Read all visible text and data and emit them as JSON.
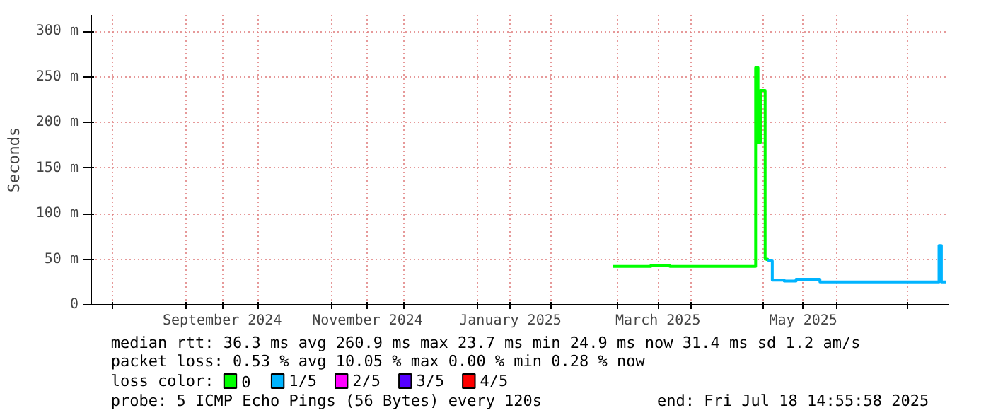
{
  "chart_data": {
    "type": "step",
    "ylabel": "Seconds",
    "legend_title": "loss color:",
    "legend": "bottom",
    "grid": true,
    "marker": "none",
    "line_style": "solid",
    "xlim": [
      "2024-07-23",
      "2025-07-18"
    ],
    "xticks": [
      {
        "value": "2024-08-01",
        "label": null
      },
      {
        "value": "2024-09-01",
        "label": null
      },
      {
        "value": "2024-09-16",
        "label": "September 2024"
      },
      {
        "value": "2024-10-01",
        "label": null
      },
      {
        "value": "2024-11-01",
        "label": null
      },
      {
        "value": "2024-11-16",
        "label": "November 2024"
      },
      {
        "value": "2024-12-01",
        "label": null
      },
      {
        "value": "2025-01-01",
        "label": null
      },
      {
        "value": "2025-01-15",
        "label": "January 2025"
      },
      {
        "value": "2025-02-01",
        "label": null
      },
      {
        "value": "2025-03-01",
        "label": null
      },
      {
        "value": "2025-03-18",
        "label": "March 2025"
      },
      {
        "value": "2025-04-01",
        "label": null
      },
      {
        "value": "2025-05-01",
        "label": null
      },
      {
        "value": "2025-05-18",
        "label": "May 2025"
      },
      {
        "value": "2025-06-01",
        "label": null
      },
      {
        "value": "2025-07-01",
        "label": null
      }
    ],
    "ylim": [
      0,
      318
    ],
    "yticks": [
      0,
      {
        "value": 50,
        "label": "50 m"
      },
      {
        "value": 100,
        "label": "100 m"
      },
      {
        "value": 150,
        "label": "150 m"
      },
      {
        "value": 200,
        "label": "200 m"
      },
      {
        "value": 250,
        "label": "250 m"
      },
      {
        "value": 300,
        "label": "300 m"
      }
    ],
    "series": [
      {
        "name": "0",
        "color": "#00ff00",
        "x": [
          "2025-02-27",
          "2025-03-07",
          "2025-03-15",
          "2025-03-23",
          "2025-03-31",
          "2025-04-08",
          "2025-04-16",
          "2025-04-24",
          "2025-04-27",
          "2025-04-28",
          "2025-04-29",
          "2025-04-30",
          "2025-05-02",
          "2025-05-03"
        ],
        "values": [
          42,
          42,
          43,
          42,
          42,
          42,
          42,
          42,
          42,
          260,
          178,
          235,
          50,
          48
        ]
      },
      {
        "name": "1/5",
        "color": "#00b4ff",
        "x": [
          "2025-05-03",
          "2025-05-05",
          "2025-05-10",
          "2025-05-15",
          "2025-05-25",
          "2025-06-05",
          "2025-06-15",
          "2025-06-25",
          "2025-07-05",
          "2025-07-13",
          "2025-07-14",
          "2025-07-15",
          "2025-07-17"
        ],
        "values": [
          48,
          27,
          26,
          28,
          25,
          25,
          25,
          25,
          25,
          25,
          65,
          25,
          25
        ]
      },
      {
        "name": "2/5",
        "color": "#ff00ff"
      },
      {
        "name": "3/5",
        "color": "#5500ff"
      },
      {
        "name": "4/5",
        "color": "#ff0000"
      }
    ],
    "annotations": [
      "median rtt:  36.3 ms avg  260.9 ms max  23.7 ms min  24.9 ms now  31.4 ms sd  1.2   am/s",
      "packet loss: 0.53 % avg  10.05 % max  0.00 % min  0.28 % now",
      "probe:       5 ICMP Echo Pings (56 Bytes) every 120s",
      "end: Fri Jul 18 14:55:58 2025"
    ]
  }
}
